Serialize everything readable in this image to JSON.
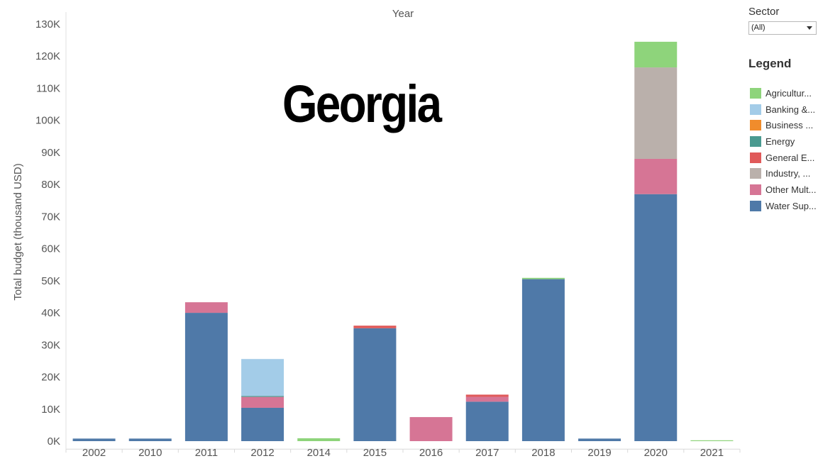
{
  "header": {
    "top_axis_title": "Year",
    "overlay_title": "Georgia"
  },
  "filter": {
    "label": "Sector",
    "selected": "(All)",
    "icon": "chevron-down-icon"
  },
  "legend": {
    "title": "Legend",
    "items": [
      {
        "label": "Agricultur...",
        "color": "#8ed47b"
      },
      {
        "label": "Banking &...",
        "color": "#a3cce8"
      },
      {
        "label": "Business ...",
        "color": "#f08c2c"
      },
      {
        "label": "Energy",
        "color": "#4a9a90"
      },
      {
        "label": "General E...",
        "color": "#e05a5a"
      },
      {
        "label": "Industry, ...",
        "color": "#bab0ab"
      },
      {
        "label": "Other Mult...",
        "color": "#d67595"
      },
      {
        "label": "Water Sup...",
        "color": "#4f79a8"
      }
    ]
  },
  "chart_data": {
    "type": "bar",
    "stacked": true,
    "title": "Georgia",
    "xlabel": "Year",
    "ylabel": "Total budget (thousand USD)",
    "ylim": [
      -2500,
      132000
    ],
    "yticks": [
      0,
      10000,
      20000,
      30000,
      40000,
      50000,
      60000,
      70000,
      80000,
      90000,
      100000,
      110000,
      120000,
      130000
    ],
    "ytick_labels": [
      "0K",
      "10K",
      "20K",
      "30K",
      "40K",
      "50K",
      "60K",
      "70K",
      "80K",
      "90K",
      "100K",
      "110K",
      "120K",
      "130K"
    ],
    "grid": false,
    "legend_position": "right",
    "categories": [
      "2002",
      "2010",
      "2011",
      "2012",
      "2014",
      "2015",
      "2016",
      "2017",
      "2018",
      "2019",
      "2020",
      "2021"
    ],
    "series": [
      {
        "name": "Water Sup...",
        "color": "#4f79a8",
        "values": [
          800,
          800,
          40000,
          10400,
          0,
          35200,
          0,
          12300,
          50500,
          800,
          77000,
          0
        ]
      },
      {
        "name": "Other Mult...",
        "color": "#d67595",
        "values": [
          0,
          0,
          3300,
          3400,
          0,
          0,
          7500,
          1500,
          0,
          0,
          11000,
          0
        ]
      },
      {
        "name": "Energy",
        "color": "#4a9a90",
        "values": [
          0,
          0,
          0,
          300,
          0,
          0,
          0,
          0,
          0,
          0,
          0,
          0
        ]
      },
      {
        "name": "General E...",
        "color": "#e05a5a",
        "values": [
          0,
          0,
          0,
          0,
          0,
          800,
          0,
          700,
          0,
          0,
          0,
          0
        ]
      },
      {
        "name": "Banking &...",
        "color": "#a3cce8",
        "values": [
          0,
          0,
          0,
          11500,
          0,
          0,
          0,
          0,
          0,
          0,
          0,
          0
        ]
      },
      {
        "name": "Industry, ...",
        "color": "#bab0ab",
        "values": [
          0,
          0,
          0,
          0,
          0,
          0,
          0,
          0,
          0,
          0,
          28500,
          0
        ]
      },
      {
        "name": "Agricultur...",
        "color": "#8ed47b",
        "values": [
          0,
          0,
          0,
          0,
          900,
          0,
          0,
          0,
          400,
          0,
          8000,
          200
        ]
      }
    ]
  }
}
